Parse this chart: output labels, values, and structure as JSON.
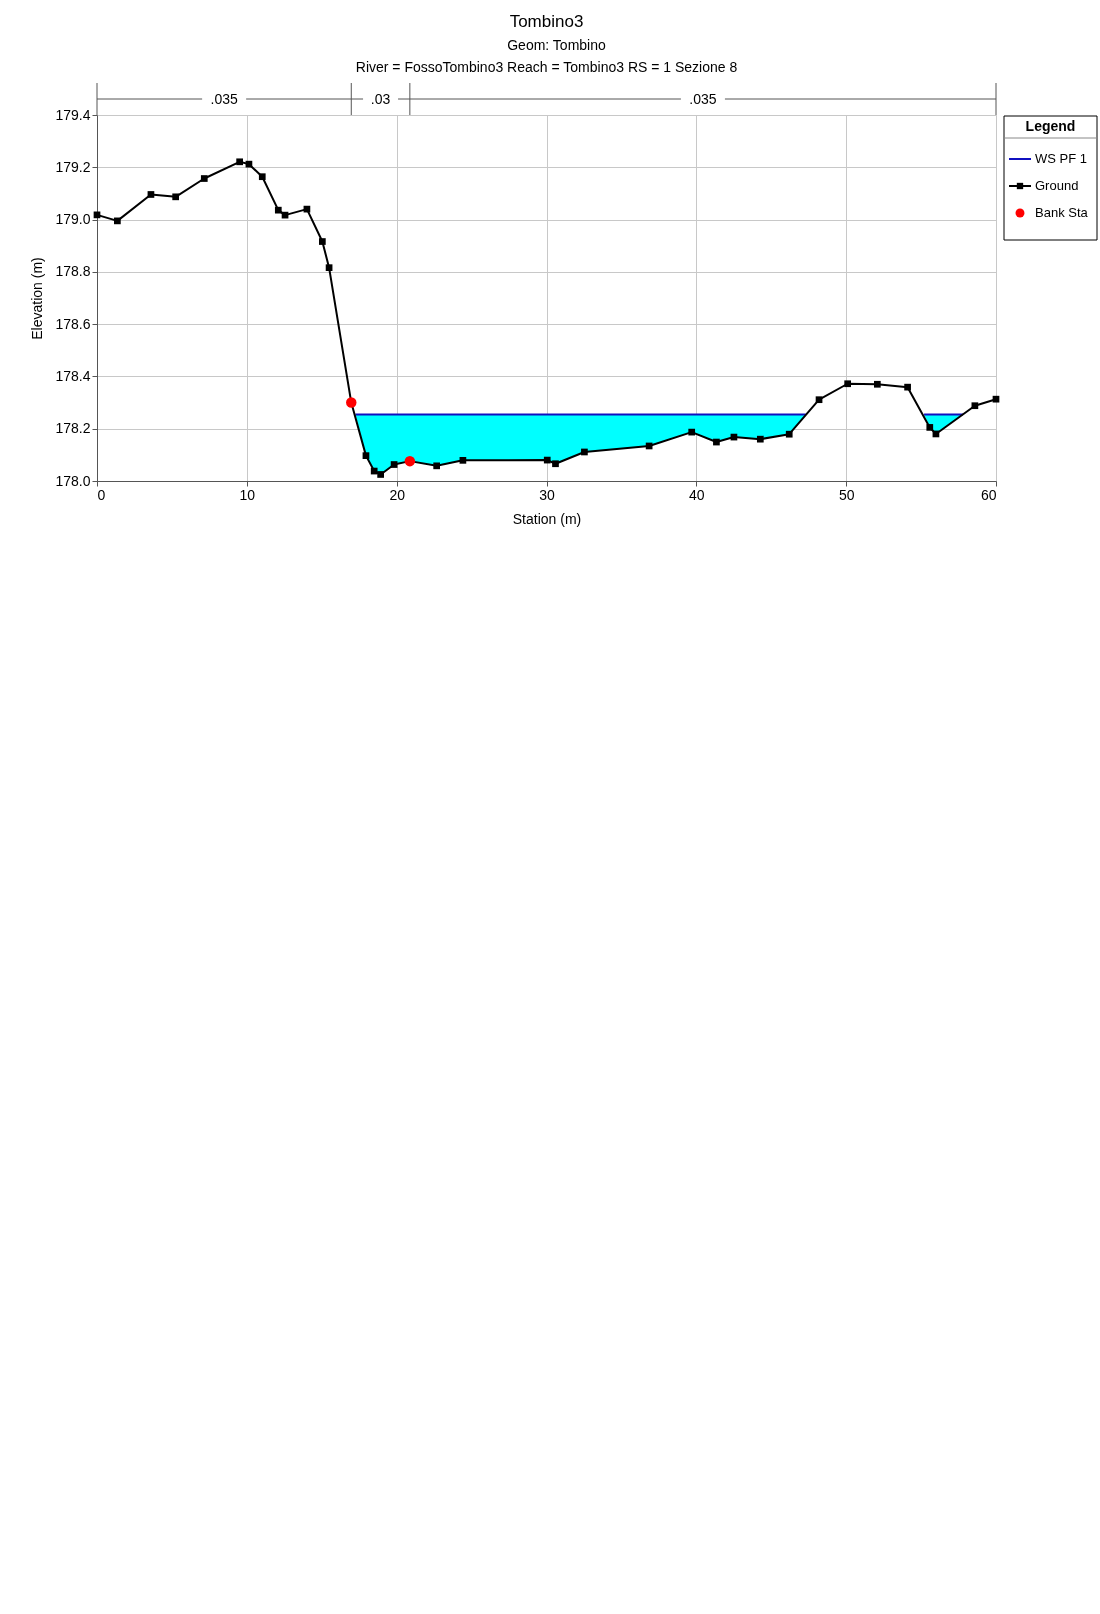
{
  "chart_data": {
    "type": "line",
    "title": "Tombino3",
    "subtitle": "Geom: Tombino\nRiver = FossoTombino3   Reach = Tombino3      RS = 1  Sezione 8",
    "xlabel": "Station (m)",
    "ylabel": "Elevation (m)",
    "legend_title": "Legend",
    "annotations": [
      ".035",
      ".03",
      ".035"
    ],
    "series": [
      {
        "name": "WS PF 1",
        "type": "line",
        "color": "#1010c0",
        "x": [
          17.25,
          17.95,
          18.5,
          18.93,
          19.83,
          20.88,
          22.67,
          24.42,
          30.05,
          30.6,
          32.53,
          36.85,
          39.69,
          41.34,
          42.51,
          44.27,
          46.2,
          47.3,
          51,
          55.2,
          55.58,
          55.99,
          57.8
        ],
        "values": [
          178.254,
          178.254,
          178.254,
          178.254,
          178.254,
          178.254,
          178.254,
          178.254,
          178.254,
          178.254,
          178.254,
          178.254,
          178.254,
          178.254,
          178.254,
          178.254,
          178.254,
          178.254,
          null,
          178.254,
          178.254,
          178.254,
          178.254
        ],
        "upper": [
          178.254,
          178.254,
          178.254,
          178.254,
          178.254,
          178.254,
          178.254,
          178.254,
          178.254,
          178.254,
          178.254,
          178.254,
          178.254,
          178.254,
          178.254,
          178.254,
          178.254,
          178.254,
          null,
          178.254,
          178.254,
          178.254,
          178.254
        ],
        "lower": [
          178.254,
          178.097,
          178.038,
          178.025,
          178.063,
          178.076,
          178.058,
          178.079,
          178.08,
          178.066,
          178.111,
          178.134,
          178.187,
          178.149,
          178.168,
          178.16,
          178.179,
          178.254,
          null,
          178.254,
          178.205,
          178.18,
          178.254
        ]
      },
      {
        "name": "Ground",
        "color": "#000000",
        "marker": "square",
        "x": [
          0,
          1.36,
          3.6,
          5.25,
          7.16,
          9.52,
          10.14,
          11.03,
          12.1,
          12.55,
          14.01,
          15.04,
          15.49,
          16.97,
          17.95,
          18.5,
          18.93,
          19.83,
          20.88,
          22.67,
          24.42,
          30.05,
          30.6,
          32.53,
          36.85,
          39.69,
          41.34,
          42.51,
          44.27,
          46.2,
          48.19,
          50.1,
          52.08,
          54.1,
          55.58,
          55.99,
          58.59,
          60
        ],
        "values": [
          179.018,
          178.995,
          179.096,
          179.087,
          179.157,
          179.221,
          179.212,
          179.164,
          179.036,
          179.017,
          179.04,
          178.916,
          178.816,
          178.3,
          178.097,
          178.038,
          178.025,
          178.063,
          178.076,
          178.058,
          178.079,
          178.08,
          178.066,
          178.111,
          178.134,
          178.187,
          178.149,
          178.168,
          178.16,
          178.179,
          178.311,
          178.372,
          178.37,
          178.359,
          178.205,
          178.18,
          178.288,
          178.313
        ]
      },
      {
        "name": "Bank Sta",
        "type": "scatter",
        "color": "#ff0000",
        "marker": "circle",
        "x": [
          16.97,
          20.88
        ],
        "values": [
          178.3,
          178.076
        ]
      }
    ],
    "xlim": [
      0,
      60
    ],
    "xticks": [
      0,
      10,
      20,
      30,
      40,
      50,
      60
    ],
    "ylim": [
      178.0,
      179.4
    ],
    "yticks": [
      {
        "value": 178.0,
        "label": "178.0"
      },
      178.2,
      178.4,
      178.6,
      178.8,
      {
        "value": 179.0,
        "label": "179.0"
      },
      179.2,
      179.4
    ],
    "grid": true,
    "legend": "right"
  }
}
